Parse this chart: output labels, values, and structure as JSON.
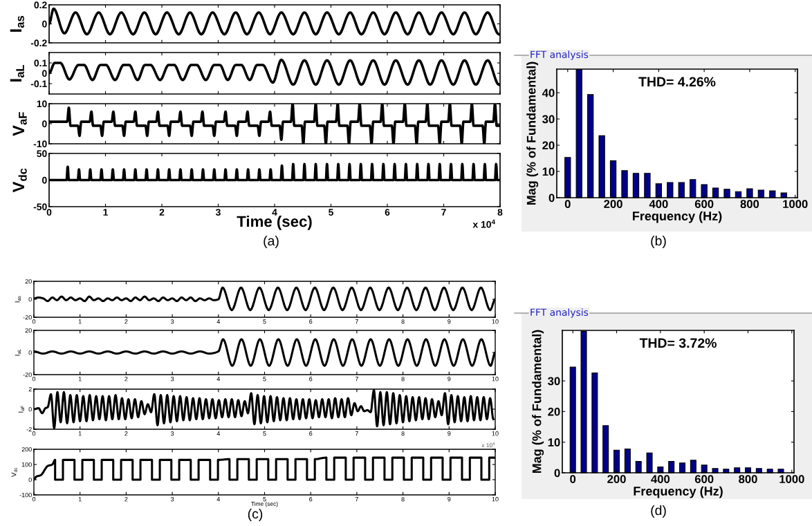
{
  "chart_data": [
    {
      "type": "line",
      "ylabel": "I$_{as}$",
      "xlim": [
        0,
        8
      ],
      "ylim": [
        -0.2,
        0.2
      ],
      "xticks": [
        0,
        1,
        2,
        3,
        4,
        5,
        6,
        7,
        8
      ],
      "yticks": [
        -0.2,
        0,
        0.2
      ],
      "tick_labels": "y",
      "color": "#000000",
      "x": [
        0,
        0.08,
        0.27,
        0.47,
        0.67,
        0.88,
        1.08,
        1.28,
        1.49,
        1.69,
        1.89,
        2.09,
        2.3,
        2.5,
        2.7,
        2.9,
        3.11,
        3.31,
        3.51,
        3.72,
        3.92,
        4.12,
        4.33,
        4.53,
        4.73,
        4.93,
        5.14,
        5.34,
        5.54,
        5.75,
        5.95,
        6.15,
        6.36,
        6.56,
        6.76,
        6.96,
        7.17,
        7.37,
        7.57,
        7.78,
        7.98
      ],
      "values": [
        0,
        0.16,
        -0.1,
        0.12,
        -0.11,
        0.12,
        -0.11,
        0.12,
        -0.11,
        0.12,
        -0.11,
        0.12,
        -0.11,
        0.12,
        -0.11,
        0.12,
        -0.11,
        0.12,
        -0.11,
        0.12,
        -0.11,
        0.12,
        -0.11,
        0.12,
        -0.11,
        0.12,
        -0.11,
        0.12,
        -0.11,
        0.12,
        -0.11,
        0.12,
        -0.11,
        0.12,
        -0.11,
        0.12,
        -0.11,
        0.12,
        -0.11,
        0.12,
        -0.11
      ]
    },
    {
      "type": "line",
      "ylabel": "I$_{aL}$",
      "xlim": [
        0,
        8
      ],
      "ylim": [
        -0.2,
        0.2
      ],
      "xticks": [
        0,
        1,
        2,
        3,
        4,
        5,
        6,
        7,
        8
      ],
      "yticks": [
        -0.1,
        0,
        0.1
      ],
      "tick_labels": "y",
      "color": "#000000",
      "x": [
        0,
        0.1,
        0.2,
        0.36,
        0.52,
        0.62,
        0.77,
        0.91,
        1.01,
        1.17,
        1.32,
        1.42,
        1.57,
        1.7,
        1.8,
        1.97,
        2.12,
        2.22,
        2.37,
        2.52,
        2.62,
        2.78,
        2.93,
        3.03,
        3.17,
        3.31,
        3.41,
        3.56,
        3.69,
        3.79,
        3.97,
        4.12,
        4.33,
        4.53,
        4.73,
        4.93,
        5.14,
        5.34,
        5.54,
        5.75,
        5.95,
        6.15,
        6.36,
        6.56,
        6.76,
        6.96,
        7.17,
        7.37,
        7.57,
        7.78,
        7.98
      ],
      "values": [
        0,
        0.1,
        0.1,
        -0.06,
        0.08,
        0.08,
        -0.065,
        0.08,
        0.08,
        -0.065,
        0.08,
        0.08,
        -0.065,
        0.08,
        0.08,
        -0.065,
        0.08,
        0.08,
        -0.065,
        0.08,
        0.08,
        -0.065,
        0.08,
        0.08,
        -0.065,
        0.08,
        0.08,
        -0.065,
        0.08,
        0.08,
        -0.09,
        0.13,
        -0.11,
        0.125,
        -0.11,
        0.125,
        -0.11,
        0.125,
        -0.11,
        0.125,
        -0.11,
        0.125,
        -0.11,
        0.125,
        -0.11,
        0.125,
        -0.11,
        0.125,
        -0.11,
        0.125,
        -0.11
      ]
    },
    {
      "type": "line",
      "ylabel": "V$_{aF}$",
      "xlim": [
        0,
        8
      ],
      "ylim": [
        -10,
        10
      ],
      "xticks": [
        0,
        1,
        2,
        3,
        4,
        5,
        6,
        7,
        8
      ],
      "yticks": [
        -10,
        0,
        10
      ],
      "tick_labels": "y",
      "color": "#000000",
      "x": [
        0,
        0.32,
        0.35,
        0.38,
        0.51,
        0.54,
        0.57,
        0.72,
        0.75,
        0.78,
        0.91,
        0.94,
        0.97,
        1.11,
        1.14,
        1.17,
        1.3,
        1.33,
        1.36,
        1.5,
        1.53,
        1.56,
        1.71,
        1.74,
        1.77,
        1.9,
        1.93,
        1.96,
        2.1,
        2.13,
        2.16,
        2.3,
        2.33,
        2.36,
        2.5,
        2.53,
        2.56,
        2.69,
        2.72,
        2.75,
        2.9,
        2.93,
        2.96,
        3.1,
        3.13,
        3.16,
        3.3,
        3.33,
        3.36,
        3.49,
        3.52,
        3.55,
        3.7,
        3.73,
        3.76,
        3.89,
        3.92,
        3.95,
        4.09,
        4.12,
        4.15,
        4.29,
        4.32,
        4.35,
        4.48,
        4.51,
        4.54,
        4.7,
        4.73,
        4.76,
        4.88,
        4.91,
        4.94,
        5.09,
        5.12,
        5.15,
        5.29,
        5.32,
        5.35,
        5.48,
        5.51,
        5.54,
        5.69,
        5.72,
        5.75,
        5.88,
        5.91,
        5.94,
        6.08,
        6.11,
        6.14,
        6.28,
        6.31,
        6.34,
        6.49,
        6.52,
        6.55,
        6.68,
        6.71,
        6.74,
        6.9,
        6.93,
        6.96,
        7.08,
        7.11,
        7.14,
        7.29,
        7.32,
        7.35,
        7.47,
        7.5,
        7.53,
        7.69,
        7.72,
        7.75,
        7.88,
        7.91,
        7.94,
        8
      ],
      "values": [
        1,
        1,
        8,
        -1,
        -1,
        -6,
        1,
        1,
        6,
        -1,
        -1,
        -6,
        1,
        1,
        6,
        -1,
        -1,
        -6,
        1,
        1,
        6,
        -1,
        -1,
        -6,
        1,
        1,
        6,
        -1,
        -1,
        -6,
        1,
        1,
        6,
        -1,
        -1,
        -6,
        1,
        1,
        6,
        -1,
        -1,
        -6,
        1,
        1,
        6,
        -1,
        -1,
        -6,
        1,
        1,
        6,
        -1,
        -1,
        -6,
        1,
        1,
        6,
        -1,
        -1,
        -8,
        1,
        1,
        10,
        -1,
        -1,
        -10,
        1,
        1,
        10,
        -1,
        -1,
        -10,
        1,
        1,
        10,
        -1,
        -1,
        -10,
        1,
        1,
        10,
        -1,
        -1,
        -10,
        1,
        1,
        10,
        -1,
        -1,
        -10,
        1,
        1,
        10,
        -1,
        -1,
        -10,
        1,
        1,
        10,
        -1,
        -1,
        -10,
        1,
        1,
        10,
        -1,
        -1,
        -10,
        1,
        1,
        10,
        -1,
        -1,
        -10,
        1,
        1,
        10,
        -1,
        -1
      ]
    },
    {
      "type": "line",
      "ylabel": "V$_{dc}$",
      "xlabel": "Time (sec)",
      "xlim": [
        0,
        8
      ],
      "ylim": [
        -50,
        50
      ],
      "xticks": [
        0,
        1,
        2,
        3,
        4,
        5,
        6,
        7,
        8
      ],
      "yticks": [
        -50,
        0,
        50
      ],
      "color": "#000000",
      "annotations": [
        "x 10$^{4}$",
        "(a)"
      ],
      "x": [
        0,
        0.31,
        0.33,
        0.35,
        0.51,
        0.53,
        0.55,
        0.71,
        0.73,
        0.75,
        0.91,
        0.93,
        0.95,
        1.11,
        1.13,
        1.15,
        1.31,
        1.33,
        1.35,
        1.51,
        1.53,
        1.55,
        1.71,
        1.73,
        1.75,
        1.91,
        1.93,
        1.95,
        2.11,
        2.13,
        2.15,
        2.31,
        2.33,
        2.35,
        2.51,
        2.53,
        2.55,
        2.71,
        2.73,
        2.75,
        2.91,
        2.93,
        2.95,
        3.11,
        3.13,
        3.15,
        3.31,
        3.33,
        3.35,
        3.51,
        3.53,
        3.55,
        3.71,
        3.73,
        3.75,
        3.91,
        3.93,
        3.95,
        4.11,
        4.13,
        4.15,
        4.31,
        4.33,
        4.35,
        4.51,
        4.53,
        4.55,
        4.71,
        4.73,
        4.75,
        4.91,
        4.93,
        4.95,
        5.11,
        5.13,
        5.15,
        5.31,
        5.33,
        5.35,
        5.51,
        5.53,
        5.55,
        5.71,
        5.73,
        5.75,
        5.91,
        5.93,
        5.95,
        6.11,
        6.13,
        6.15,
        6.31,
        6.33,
        6.35,
        6.51,
        6.53,
        6.55,
        6.71,
        6.73,
        6.75,
        6.91,
        6.93,
        6.95,
        7.11,
        7.13,
        7.15,
        7.31,
        7.33,
        7.35,
        7.51,
        7.53,
        7.55,
        7.71,
        7.73,
        7.75,
        7.91,
        7.93,
        7.95,
        8
      ],
      "values": [
        0,
        0,
        25,
        0,
        0,
        20,
        0,
        0,
        20,
        0,
        0,
        20,
        0,
        0,
        20,
        0,
        0,
        20,
        0,
        0,
        20,
        0,
        0,
        20,
        0,
        0,
        20,
        0,
        0,
        20,
        0,
        0,
        20,
        0,
        0,
        20,
        0,
        0,
        20,
        0,
        0,
        20,
        0,
        0,
        20,
        0,
        0,
        20,
        0,
        0,
        20,
        0,
        0,
        20,
        0,
        0,
        20,
        0,
        0,
        27,
        0,
        0,
        30,
        0,
        0,
        30,
        0,
        0,
        30,
        0,
        0,
        30,
        0,
        0,
        30,
        0,
        0,
        30,
        0,
        0,
        30,
        0,
        0,
        30,
        0,
        0,
        30,
        0,
        0,
        30,
        0,
        0,
        30,
        0,
        0,
        30,
        0,
        0,
        30,
        0,
        0,
        30,
        0,
        0,
        30,
        0,
        0,
        30,
        0,
        0,
        30,
        0,
        0,
        30,
        0,
        0,
        30,
        0,
        0
      ]
    },
    {
      "type": "bar",
      "title": "THD= 4.26%",
      "xlabel": "Frequency (Hz)",
      "ylabel": "Mag (% of Fundamental)",
      "xlim": [
        -48,
        1010
      ],
      "ylim": [
        0,
        49
      ],
      "xticks": [
        0,
        200,
        400,
        600,
        800,
        1000
      ],
      "yticks": [
        0,
        10,
        20,
        30,
        40
      ],
      "color": "#00008b",
      "annotations": [
        "FFT analysis",
        "(b)"
      ],
      "x": [
        0,
        50,
        100,
        150,
        200,
        250,
        300,
        350,
        400,
        450,
        500,
        550,
        600,
        650,
        700,
        750,
        800,
        850,
        900,
        950
      ],
      "values": [
        15.3,
        48.8,
        39.3,
        23.6,
        14.1,
        10.3,
        9.3,
        9.3,
        5.3,
        5.8,
        5.8,
        6.9,
        5.0,
        3.7,
        3.2,
        2.3,
        3.4,
        2.9,
        2.6,
        1.8
      ]
    },
    {
      "type": "line",
      "ylabel": "I$_{as}$",
      "xlim": [
        0,
        10
      ],
      "ylim": [
        -20,
        20
      ],
      "xticks": [
        0,
        1,
        2,
        3,
        4,
        5,
        6,
        7,
        8,
        9,
        10
      ],
      "yticks": [
        -20,
        0,
        20
      ],
      "color": "#000000",
      "x": [
        0,
        0.1,
        0.2,
        0.3,
        0.4,
        0.5,
        0.6,
        0.7,
        0.8,
        0.9,
        1.0,
        1.1,
        1.2,
        1.3,
        1.4,
        1.5,
        1.6,
        1.7,
        1.8,
        1.9,
        2.0,
        2.1,
        2.2,
        2.3,
        2.4,
        2.5,
        2.6,
        2.7,
        2.8,
        2.9,
        3.0,
        3.1,
        3.2,
        3.3,
        3.4,
        3.5,
        3.6,
        3.7,
        3.8,
        3.9,
        4.0,
        4.09,
        4.29,
        4.49,
        4.69,
        4.89,
        5.09,
        5.29,
        5.49,
        5.69,
        5.89,
        6.09,
        6.29,
        6.49,
        6.69,
        6.89,
        7.09,
        7.29,
        7.49,
        7.69,
        7.89,
        8.09,
        8.29,
        8.49,
        8.69,
        8.89,
        9.09,
        9.29,
        9.49,
        9.69,
        9.89,
        10.0
      ],
      "values": [
        1,
        2,
        1,
        -2,
        2,
        -1,
        3,
        -1,
        2,
        -1,
        1,
        -2,
        3,
        -1,
        1,
        -2,
        1,
        -1,
        2,
        -1,
        1,
        -2,
        2,
        -1,
        3,
        -1,
        1,
        -2,
        2,
        -1,
        1,
        -2,
        2,
        -1,
        2,
        -2,
        1,
        -1,
        1,
        -1,
        0,
        13,
        -12,
        13,
        -12,
        13,
        -12,
        13,
        -12,
        13,
        -12,
        13,
        -12,
        13,
        -12,
        13,
        -12,
        13,
        -12,
        13,
        -12,
        13,
        -12,
        13,
        -12,
        13,
        -12,
        13,
        -12,
        13,
        -12,
        0
      ]
    },
    {
      "type": "line",
      "ylabel": "I$_{aL}$",
      "xlim": [
        0,
        10
      ],
      "ylim": [
        -20,
        20
      ],
      "xticks": [
        0,
        1,
        2,
        3,
        4,
        5,
        6,
        7,
        8,
        9,
        10
      ],
      "yticks": [
        -20,
        0,
        20
      ],
      "color": "#000000",
      "x": [
        0,
        0.2,
        0.4,
        0.6,
        0.8,
        1.0,
        1.2,
        1.4,
        1.6,
        1.8,
        2.0,
        2.2,
        2.4,
        2.6,
        2.8,
        3.0,
        3.2,
        3.4,
        3.6,
        3.8,
        4.0,
        4.1,
        4.3,
        4.5,
        4.7,
        4.9,
        5.1,
        5.3,
        5.5,
        5.7,
        5.9,
        6.1,
        6.3,
        6.5,
        6.7,
        6.9,
        7.1,
        7.3,
        7.5,
        7.7,
        7.9,
        8.1,
        8.3,
        8.5,
        8.7,
        8.9,
        9.1,
        9.3,
        9.5,
        9.7,
        9.9,
        10.0
      ],
      "values": [
        1,
        -1,
        1,
        -1,
        1,
        -1,
        1,
        -1,
        1,
        -1,
        1,
        -1,
        1,
        -1,
        1,
        -1,
        1,
        -1,
        1,
        -1,
        1,
        12,
        -12,
        12,
        -12,
        12,
        -12,
        12,
        -12,
        12,
        -12,
        12,
        -12,
        12,
        -12,
        12,
        -12,
        12,
        -12,
        12,
        -12,
        12,
        -12,
        12,
        -12,
        12,
        -12,
        12,
        -12,
        12,
        -12,
        0
      ]
    },
    {
      "type": "line",
      "ylabel": "I$_{aF}$",
      "xlim": [
        0,
        10
      ],
      "ylim": [
        -2,
        2
      ],
      "xticks": [
        0,
        1,
        2,
        3,
        4,
        5,
        6,
        7,
        8,
        9,
        10
      ],
      "yticks": [
        -2,
        0,
        2
      ],
      "color": "#000000",
      "x": [
        0,
        0.1,
        0.18,
        0.25,
        0.3,
        0.37,
        0.44,
        0.51,
        0.58,
        0.65,
        0.72,
        0.79,
        0.86,
        0.93,
        1.0,
        1.07,
        1.14,
        1.21,
        1.28,
        1.35,
        1.42,
        1.49,
        1.56,
        1.63,
        1.7,
        1.77,
        1.84,
        1.91,
        1.98,
        2.05,
        2.12,
        2.19,
        2.26,
        2.33,
        2.4,
        2.47,
        2.54,
        2.61,
        2.68,
        2.75,
        2.82,
        2.89,
        2.96,
        3.03,
        3.1,
        3.17,
        3.24,
        3.31,
        3.38,
        3.45,
        3.52,
        3.59,
        3.66,
        3.73,
        3.8,
        3.87,
        3.94,
        4.01,
        4.08,
        4.15,
        4.22,
        4.29,
        4.36,
        4.43,
        4.5,
        4.57,
        4.64,
        4.71,
        4.78,
        4.85,
        4.92,
        4.99,
        5.06,
        5.13,
        5.2,
        5.27,
        5.34,
        5.41,
        5.48,
        5.55,
        5.62,
        5.69,
        5.76,
        5.83,
        5.9,
        5.97,
        6.04,
        6.11,
        6.18,
        6.25,
        6.32,
        6.39,
        6.46,
        6.53,
        6.6,
        6.67,
        6.74,
        6.81,
        6.88,
        6.95,
        7.02,
        7.09,
        7.16,
        7.23,
        7.3,
        7.37,
        7.44,
        7.51,
        7.58,
        7.65,
        7.72,
        7.79,
        7.86,
        7.93,
        8.0,
        8.07,
        8.14,
        8.21,
        8.28,
        8.35,
        8.42,
        8.49,
        8.56,
        8.63,
        8.7,
        8.77,
        8.84,
        8.91,
        8.98,
        9.05,
        9.12,
        9.19,
        9.26,
        9.33,
        9.4,
        9.47,
        9.54,
        9.61,
        9.68,
        9.75,
        9.82,
        9.89,
        9.96
      ],
      "values": [
        0,
        0.1,
        -0.4,
        0.1,
        0.2,
        1.5,
        -1.9,
        1.7,
        -1.3,
        1.7,
        -1.4,
        1.4,
        -1.3,
        1.4,
        -1.2,
        1.3,
        -1.2,
        1.4,
        -1.1,
        1.3,
        -1.0,
        1.3,
        -1.1,
        1.3,
        -1.0,
        1.4,
        -1.0,
        1.1,
        -1.0,
        1.0,
        -0.9,
        1.0,
        -0.8,
        0.8,
        -0.5,
        0.5,
        -0.3,
        1.5,
        -1.6,
        1.4,
        -1.4,
        1.4,
        -1.3,
        1.3,
        -1.2,
        1.3,
        -1.1,
        1.2,
        -1.1,
        1.1,
        -1.0,
        1.1,
        -1.0,
        1.0,
        -0.9,
        1.0,
        -0.9,
        0.9,
        -0.8,
        1.0,
        -0.8,
        1.0,
        -0.8,
        0.9,
        -0.7,
        0.8,
        -0.4,
        1.6,
        -1.5,
        1.4,
        -1.4,
        1.3,
        -1.3,
        1.3,
        -1.2,
        1.2,
        -1.1,
        1.1,
        -1.1,
        1.1,
        -1.0,
        1.0,
        -1.0,
        1.0,
        -0.9,
        1.0,
        -0.9,
        0.9,
        -0.8,
        1.0,
        -0.8,
        1.0,
        -0.9,
        1.1,
        -0.8,
        1.0,
        -0.8,
        1.1,
        -0.6,
        0.6,
        -0.2,
        0.3,
        -0.2,
        -0.1,
        -0.3,
        1.9,
        -1.7,
        1.7,
        -1.6,
        1.7,
        -1.5,
        1.6,
        -1.4,
        1.4,
        -1.3,
        1.3,
        -1.2,
        1.2,
        -1.1,
        1.2,
        -1.0,
        1.1,
        -1.0,
        1.0,
        -0.8,
        0.8,
        -0.6,
        1.6,
        -1.5,
        1.4,
        -1.3,
        1.3,
        -1.2,
        1.2,
        -1.2,
        1.3,
        -1.1,
        1.2,
        -1.1,
        1.2,
        -1.0,
        1.1,
        -1.0
      ]
    },
    {
      "type": "line",
      "ylabel": "V$_{dc}$",
      "xlabel": "Time (sec)",
      "xlim": [
        0,
        10
      ],
      "ylim": [
        -100,
        200
      ],
      "xticks": [
        0,
        1,
        2,
        3,
        4,
        5,
        6,
        7,
        8,
        9,
        10
      ],
      "yticks": [
        -100,
        0,
        100,
        200
      ],
      "color": "#000000",
      "annotations": [
        "x 10$^{4}$",
        "(c)"
      ],
      "x": [
        0,
        0.05,
        0.15,
        0.3,
        0.4,
        0.46,
        0.46,
        0.63,
        0.63,
        0.88,
        0.88,
        1.05,
        1.05,
        1.3,
        1.3,
        1.47,
        1.47,
        1.72,
        1.72,
        1.89,
        1.89,
        2.14,
        2.14,
        2.31,
        2.31,
        2.56,
        2.56,
        2.73,
        2.73,
        2.98,
        2.98,
        3.15,
        3.15,
        3.4,
        3.4,
        3.57,
        3.57,
        3.82,
        3.82,
        3.99,
        3.99,
        4.24,
        4.24,
        4.41,
        4.41,
        4.66,
        4.66,
        4.83,
        4.83,
        5.08,
        5.08,
        5.25,
        5.25,
        5.5,
        5.5,
        5.67,
        5.67,
        5.92,
        5.92,
        6.09,
        6.09,
        6.34,
        6.34,
        6.51,
        6.51,
        6.76,
        6.76,
        6.93,
        6.93,
        7.18,
        7.18,
        7.35,
        7.35,
        7.6,
        7.6,
        7.77,
        7.77,
        8.02,
        8.02,
        8.19,
        8.19,
        8.44,
        8.44,
        8.61,
        8.61,
        8.86,
        8.86,
        9.03,
        9.03,
        9.28,
        9.28,
        9.45,
        9.45,
        9.7,
        9.7,
        9.87,
        9.87,
        10.0
      ],
      "values": [
        0,
        20,
        30,
        90,
        100,
        130,
        0,
        0,
        130,
        130,
        0,
        0,
        130,
        130,
        0,
        0,
        130,
        130,
        0,
        0,
        130,
        130,
        0,
        0,
        130,
        130,
        0,
        0,
        130,
        130,
        0,
        0,
        130,
        130,
        0,
        0,
        130,
        130,
        0,
        0,
        130,
        135,
        0,
        0,
        135,
        135,
        0,
        0,
        135,
        135,
        0,
        0,
        135,
        135,
        0,
        0,
        135,
        135,
        0,
        0,
        135,
        145,
        0,
        0,
        145,
        145,
        0,
        0,
        145,
        145,
        0,
        0,
        145,
        145,
        0,
        0,
        145,
        145,
        0,
        0,
        145,
        145,
        0,
        0,
        145,
        145,
        0,
        0,
        145,
        145,
        0,
        0,
        145,
        145,
        0,
        0,
        145,
        145
      ]
    },
    {
      "type": "bar",
      "title": "THD= 3.72%",
      "xlabel": "Frequency (Hz)",
      "ylabel": "Mag (% of Fundamental)",
      "xlim": [
        -48,
        1010
      ],
      "ylim": [
        0,
        46.5
      ],
      "xticks": [
        0,
        200,
        400,
        600,
        800,
        1000
      ],
      "yticks": [
        0,
        10,
        20,
        30
      ],
      "color": "#00008b",
      "annotations": [
        "FFT analysis",
        "(d)"
      ],
      "x": [
        0,
        50,
        100,
        150,
        200,
        250,
        300,
        350,
        400,
        450,
        500,
        550,
        600,
        650,
        700,
        750,
        800,
        850,
        900,
        950
      ],
      "values": [
        34.5,
        46.2,
        32.6,
        15.4,
        7.4,
        7.8,
        3.7,
        6.5,
        1.9,
        3.7,
        3.2,
        4.1,
        2.5,
        1.4,
        1.2,
        1.6,
        1.6,
        1.4,
        1.2,
        1.2
      ]
    }
  ]
}
